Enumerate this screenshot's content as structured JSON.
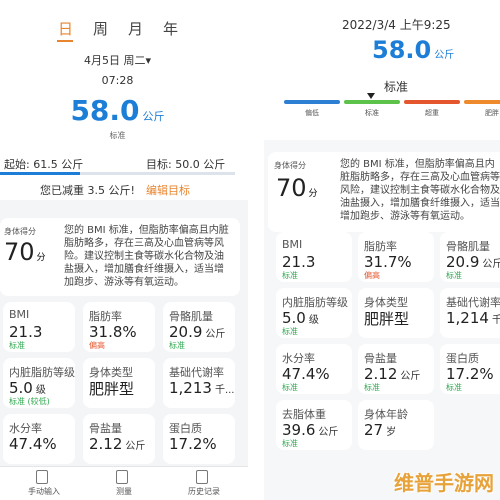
{
  "left": {
    "tabs": [
      "日",
      "周",
      "月",
      "年"
    ],
    "date": "4月5日 周二▾",
    "time": "07:28",
    "weight": "58.0",
    "weight_unit": "公斤",
    "weight_status": "标准",
    "start": "起始: 61.5 公斤",
    "goal": "目标: 50.0 公斤",
    "lost": "您已减重 3.5 公斤!",
    "edit_goal": "编辑目标",
    "score_label": "身体得分",
    "score": "70",
    "score_unit": "分",
    "description": "您的 BMI 标准，但脂肪率偏高且内脏脂肪略多，存在三高及心血管病等风险。建议控制主食等碳水化合物及油盐摄入，增加膳食纤维摄入，适当增加跑步、游泳等有氧运动。",
    "metrics": [
      {
        "label": "BMI",
        "value": "21.3",
        "status": "标准"
      },
      {
        "label": "脂肪率",
        "value": "31.8%",
        "status": "偏高"
      },
      {
        "label": "骨骼肌量",
        "value": "20.9",
        "unit": "公斤",
        "status": "标准"
      },
      {
        "label": "内脏脂肪等级",
        "value": "5.0",
        "unit": "级",
        "status": "标准 (较低)"
      },
      {
        "label": "身体类型",
        "value": "肥胖型"
      },
      {
        "label": "基础代谢率",
        "value": "1,213",
        "unit": "千..."
      },
      {
        "label": "水分率",
        "value": "47.4%"
      },
      {
        "label": "骨盐量",
        "value": "2.12",
        "unit": "公斤"
      },
      {
        "label": "蛋白质",
        "value": "17.2%"
      }
    ],
    "nav": [
      "手动输入",
      "测量",
      "历史记录"
    ]
  },
  "right": {
    "datetime": "2022/3/4 上午9:25",
    "weight": "58.0",
    "weight_unit": "公斤",
    "weight_status": "标准",
    "scale_labels": [
      "偏低",
      "标准",
      "超重",
      "肥胖"
    ],
    "score_label": "身体得分",
    "score": "70",
    "score_unit": "分",
    "description": "您的 BMI 标准，但脂肪率偏高且内脏脂肪略多，存在三高及心血管病等风险，建议控制主食等碳水化合物及油盐摄入，增加膳食纤维摄入，适当增加跑步、游泳等有氧运动。",
    "metrics": [
      {
        "label": "BMI",
        "value": "21.3",
        "status": "标准"
      },
      {
        "label": "脂肪率",
        "value": "31.7%",
        "status": "偏高"
      },
      {
        "label": "骨骼肌量",
        "value": "20.9",
        "unit": "公斤",
        "status": "标准"
      },
      {
        "label": "内脏脂肪等级",
        "value": "5.0",
        "unit": "级",
        "status": "标准"
      },
      {
        "label": "身体类型",
        "value": "肥胖型"
      },
      {
        "label": "基础代谢率",
        "value": "1,214",
        "unit": "千"
      },
      {
        "label": "水分率",
        "value": "47.4%",
        "status": "标准"
      },
      {
        "label": "骨盐量",
        "value": "2.12",
        "unit": "公斤",
        "status": "标准"
      },
      {
        "label": "蛋白质",
        "value": "17.2%",
        "status": "标准"
      },
      {
        "label": "去脂体重",
        "value": "39.6",
        "unit": "公斤",
        "status": "标准"
      },
      {
        "label": "身体年龄",
        "value": "27",
        "unit": "岁"
      }
    ]
  },
  "watermark": "维普手游网"
}
